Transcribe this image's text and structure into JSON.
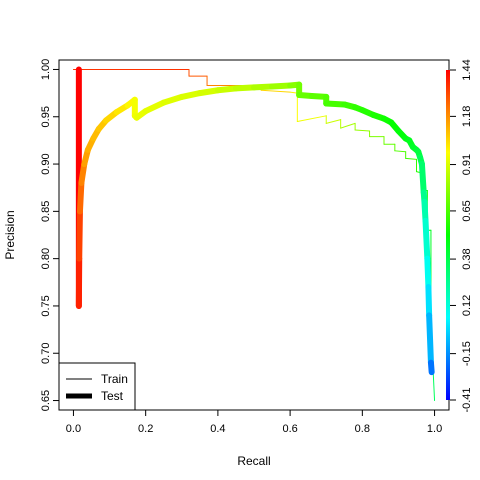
{
  "chart_data": {
    "type": "line",
    "title": "",
    "xlabel": "Recall",
    "ylabel": "Precision",
    "xlim": [
      -0.04,
      1.04
    ],
    "ylim": [
      0.64,
      1.01
    ],
    "xticks": [
      0.0,
      0.2,
      0.4,
      0.6,
      0.8,
      1.0
    ],
    "xtick_labels": [
      "0.0",
      "0.2",
      "0.4",
      "0.6",
      "0.8",
      "1.0"
    ],
    "yticks": [
      0.65,
      0.7,
      0.75,
      0.8,
      0.85,
      0.9,
      0.95,
      1.0
    ],
    "ytick_labels": [
      "0.65",
      "0.70",
      "0.75",
      "0.80",
      "0.85",
      "0.90",
      "0.95",
      "1.00"
    ],
    "colorbar": {
      "ticks": [
        1.44,
        1.18,
        0.91,
        0.65,
        0.38,
        0.12,
        -0.15,
        -0.41
      ],
      "tick_labels": [
        "1.44",
        "1.18",
        "0.91",
        "0.65",
        "0.38",
        "0.12",
        "-0.15",
        "-0.41"
      ],
      "range": [
        -0.41,
        1.44
      ],
      "colors": [
        "#0000ff",
        "#00ffff",
        "#00ff00",
        "#ffff00",
        "#ff0000"
      ]
    },
    "legend": {
      "position": "bottom-left",
      "entries": [
        {
          "label": "Train",
          "style": "thin"
        },
        {
          "label": "Test",
          "style": "thick"
        }
      ]
    },
    "series": [
      {
        "name": "Train",
        "x": [
          0.0,
          0.32,
          0.32,
          0.37,
          0.37,
          0.52,
          0.52,
          0.6,
          0.62,
          0.62,
          0.7,
          0.7,
          0.74,
          0.74,
          0.78,
          0.78,
          0.82,
          0.82,
          0.86,
          0.86,
          0.89,
          0.89,
          0.92,
          0.92,
          0.95,
          0.95,
          0.97,
          0.97,
          0.98,
          0.98,
          0.99,
          0.99,
          1.0
        ],
        "y": [
          1.0,
          1.0,
          0.993,
          0.993,
          0.983,
          0.983,
          0.978,
          0.976,
          0.975,
          0.945,
          0.951,
          0.943,
          0.947,
          0.938,
          0.943,
          0.936,
          0.935,
          0.929,
          0.929,
          0.921,
          0.921,
          0.914,
          0.913,
          0.906,
          0.905,
          0.892,
          0.89,
          0.872,
          0.872,
          0.83,
          0.83,
          0.73,
          0.65
        ],
        "color_value": [
          1.35,
          1.3,
          1.28,
          1.25,
          1.2,
          1.1,
          1.05,
          1.0,
          0.98,
          0.95,
          0.9,
          0.88,
          0.85,
          0.82,
          0.8,
          0.78,
          0.76,
          0.74,
          0.72,
          0.7,
          0.68,
          0.66,
          0.64,
          0.62,
          0.6,
          0.58,
          0.56,
          0.54,
          0.52,
          0.5,
          0.45,
          0.35,
          0.2
        ]
      },
      {
        "name": "Test",
        "x": [
          0.015,
          0.015,
          0.016,
          0.018,
          0.022,
          0.03,
          0.04,
          0.055,
          0.07,
          0.09,
          0.12,
          0.15,
          0.17,
          0.17,
          0.175,
          0.2,
          0.25,
          0.3,
          0.35,
          0.4,
          0.45,
          0.5,
          0.55,
          0.6,
          0.625,
          0.625,
          0.66,
          0.7,
          0.7,
          0.75,
          0.78,
          0.8,
          0.83,
          0.86,
          0.88,
          0.9,
          0.92,
          0.93,
          0.94,
          0.95,
          0.955,
          0.96,
          0.965,
          0.97,
          0.972,
          0.975,
          0.98,
          0.983,
          0.985,
          0.99,
          0.992
        ],
        "y": [
          1.0,
          0.75,
          0.8,
          0.85,
          0.88,
          0.9,
          0.915,
          0.927,
          0.937,
          0.946,
          0.955,
          0.962,
          0.968,
          0.951,
          0.949,
          0.956,
          0.965,
          0.971,
          0.975,
          0.978,
          0.98,
          0.981,
          0.982,
          0.983,
          0.984,
          0.973,
          0.972,
          0.971,
          0.964,
          0.963,
          0.96,
          0.957,
          0.952,
          0.948,
          0.944,
          0.935,
          0.927,
          0.925,
          0.918,
          0.915,
          0.913,
          0.907,
          0.9,
          0.87,
          0.86,
          0.84,
          0.8,
          0.77,
          0.74,
          0.69,
          0.68
        ],
        "color_value": [
          1.44,
          1.38,
          1.32,
          1.25,
          1.2,
          1.15,
          1.12,
          1.1,
          1.08,
          1.05,
          1.02,
          0.99,
          0.96,
          0.95,
          0.94,
          0.93,
          0.92,
          0.91,
          0.9,
          0.88,
          0.86,
          0.83,
          0.8,
          0.76,
          0.72,
          0.7,
          0.68,
          0.66,
          0.64,
          0.62,
          0.6,
          0.58,
          0.56,
          0.54,
          0.52,
          0.5,
          0.48,
          0.46,
          0.44,
          0.42,
          0.4,
          0.36,
          0.32,
          0.26,
          0.2,
          0.14,
          0.08,
          0.0,
          -0.08,
          -0.2,
          -0.3
        ]
      }
    ]
  }
}
